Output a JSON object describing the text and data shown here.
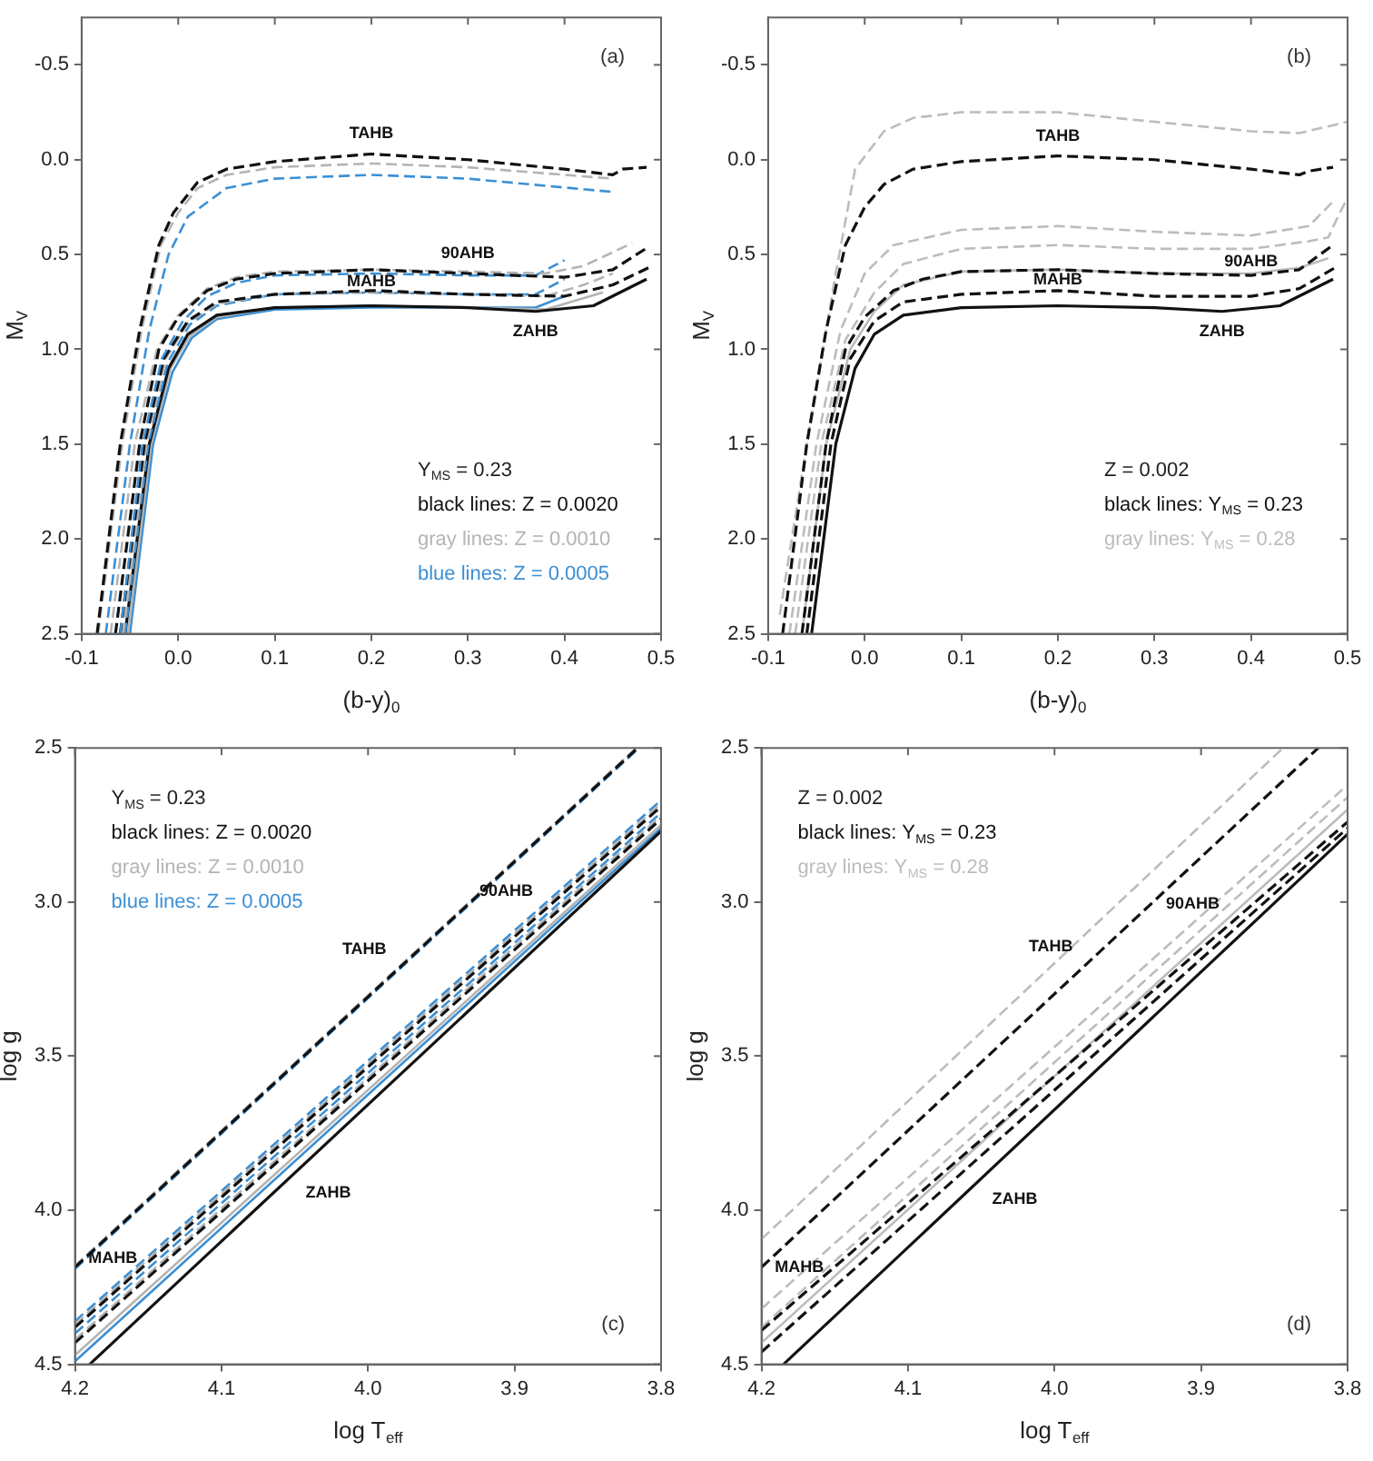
{
  "chart_data": [
    {
      "type": "line",
      "title": "(a)",
      "xlabel": "(b-y)$_{0}$",
      "ylabel": "M$_{V}$",
      "legend": false,
      "grid": false,
      "xlim": [
        -0.1,
        0.5
      ],
      "xticks": [
        {
          "value": -0.1,
          "label": "-0.1"
        },
        {
          "value": 0,
          "label": "0.0"
        },
        {
          "value": 0.1,
          "label": "0.1"
        },
        {
          "value": 0.2,
          "label": "0.2"
        },
        {
          "value": 0.3,
          "label": "0.3"
        },
        {
          "value": 0.4,
          "label": "0.4"
        },
        {
          "value": 0.5,
          "label": "0.5"
        }
      ],
      "ylim": [
        2.5,
        -0.75
      ],
      "yticks": [
        {
          "value": 2.5,
          "label": "2.5"
        },
        {
          "value": 2,
          "label": "2.0"
        },
        {
          "value": 1.5,
          "label": "1.5"
        },
        {
          "value": 1,
          "label": "1.0"
        },
        {
          "value": 0.5,
          "label": "0.5"
        },
        {
          "value": 0,
          "label": "0.0"
        },
        {
          "value": -0.5,
          "label": "-0.5"
        }
      ],
      "annotations": [
        "Y$_{MS}$ = 0.23",
        "black lines: Z = 0.0020",
        "gray lines: Z = 0.0010",
        "blue lines: Z = 0.0005",
        {
          "text": "TAHB",
          "x": 0.2,
          "y": -0.03
        },
        {
          "text": "90AHB",
          "x": 0.3,
          "y": 0.6
        },
        {
          "text": "MAHB",
          "x": 0.2,
          "y": 0.69
        },
        {
          "text": "ZAHB",
          "x": 0.37,
          "y": 0.8
        }
      ],
      "series": [
        {
          "color": "#111111",
          "line_style": "dashed",
          "x": [
            -0.084,
            -0.06,
            -0.04,
            -0.02,
            -0.005,
            0.02,
            0.05,
            0.1,
            0.2,
            0.3,
            0.4,
            0.45,
            0.46,
            0.485
          ],
          "values": [
            2.5,
            1.5,
            0.9,
            0.45,
            0.28,
            0.12,
            0.05,
            0.01,
            -0.03,
            0,
            0.05,
            0.08,
            0.05,
            0.04
          ]
        },
        {
          "color": "#b4b4b4",
          "line_style": "dashed",
          "x": [
            -0.083,
            -0.058,
            -0.038,
            -0.018,
            0,
            0.02,
            0.05,
            0.1,
            0.2,
            0.3,
            0.4,
            0.45
          ],
          "values": [
            2.5,
            1.5,
            0.9,
            0.45,
            0.28,
            0.15,
            0.08,
            0.04,
            0.02,
            0.04,
            0.08,
            0.1
          ]
        },
        {
          "color": "#3b8fd4",
          "line_style": "dashed",
          "x": [
            -0.075,
            -0.05,
            -0.03,
            -0.01,
            0.01,
            0.05,
            0.1,
            0.2,
            0.3,
            0.45
          ],
          "values": [
            2.5,
            1.5,
            0.9,
            0.5,
            0.3,
            0.15,
            0.1,
            0.08,
            0.1,
            0.17
          ]
        },
        {
          "color": "#111111",
          "line_style": "dashed",
          "x": [
            -0.065,
            -0.04,
            -0.02,
            0,
            0.03,
            0.06,
            0.1,
            0.2,
            0.3,
            0.4,
            0.45,
            0.487
          ],
          "values": [
            2.5,
            1.5,
            1,
            0.83,
            0.69,
            0.63,
            0.6,
            0.58,
            0.6,
            0.62,
            0.58,
            0.46
          ]
        },
        {
          "color": "#b4b4b4",
          "line_style": "dashed",
          "x": [
            -0.07,
            -0.045,
            -0.022,
            0,
            0.03,
            0.06,
            0.1,
            0.2,
            0.3,
            0.38,
            0.42,
            0.47
          ],
          "values": [
            2.5,
            1.5,
            1,
            0.82,
            0.68,
            0.62,
            0.59,
            0.58,
            0.59,
            0.6,
            0.56,
            0.44
          ]
        },
        {
          "color": "#3b8fd4",
          "line_style": "dashed",
          "x": [
            -0.06,
            -0.037,
            -0.017,
            0.005,
            0.03,
            0.06,
            0.1,
            0.2,
            0.3,
            0.37,
            0.4
          ],
          "values": [
            2.5,
            1.5,
            1.05,
            0.85,
            0.72,
            0.65,
            0.61,
            0.6,
            0.61,
            0.61,
            0.53
          ]
        },
        {
          "color": "#111111",
          "line_style": "dashed",
          "x": [
            -0.06,
            -0.035,
            -0.015,
            0.01,
            0.04,
            0.1,
            0.2,
            0.3,
            0.4,
            0.45,
            0.487
          ],
          "values": [
            2.5,
            1.5,
            1.05,
            0.85,
            0.75,
            0.71,
            0.69,
            0.71,
            0.72,
            0.66,
            0.57
          ]
        },
        {
          "color": "#b4b4b4",
          "line_style": "dashed",
          "x": [
            -0.057,
            -0.033,
            -0.013,
            0.01,
            0.04,
            0.1,
            0.2,
            0.3,
            0.38,
            0.42,
            0.45
          ],
          "values": [
            2.5,
            1.5,
            1.05,
            0.86,
            0.76,
            0.71,
            0.7,
            0.71,
            0.72,
            0.66,
            0.6
          ]
        },
        {
          "color": "#3b8fd4",
          "line_style": "dashed",
          "x": [
            -0.055,
            -0.031,
            -0.011,
            0.012,
            0.04,
            0.1,
            0.2,
            0.3,
            0.37,
            0.4
          ],
          "values": [
            2.5,
            1.5,
            1.07,
            0.87,
            0.77,
            0.71,
            0.7,
            0.71,
            0.71,
            0.63
          ]
        },
        {
          "color": "#111111",
          "line_style": "solid",
          "x": [
            -0.055,
            -0.03,
            -0.01,
            0.01,
            0.04,
            0.1,
            0.2,
            0.3,
            0.37,
            0.43,
            0.485
          ],
          "values": [
            2.5,
            1.5,
            1.1,
            0.92,
            0.82,
            0.78,
            0.77,
            0.78,
            0.8,
            0.77,
            0.63
          ]
        },
        {
          "color": "#b4b4b4",
          "line_style": "solid",
          "x": [
            -0.052,
            -0.028,
            -0.008,
            0.012,
            0.04,
            0.1,
            0.2,
            0.3,
            0.38,
            0.44
          ],
          "values": [
            2.5,
            1.5,
            1.1,
            0.93,
            0.83,
            0.78,
            0.77,
            0.78,
            0.79,
            0.7
          ]
        },
        {
          "color": "#3b8fd4",
          "line_style": "solid",
          "x": [
            -0.05,
            -0.026,
            -0.006,
            0.014,
            0.04,
            0.1,
            0.2,
            0.3,
            0.37,
            0.4
          ],
          "values": [
            2.5,
            1.5,
            1.12,
            0.94,
            0.84,
            0.79,
            0.78,
            0.78,
            0.78,
            0.72
          ]
        }
      ]
    },
    {
      "type": "line",
      "title": "(b)",
      "xlabel": "(b-y)$_{0}$",
      "ylabel": "M$_{V}$",
      "legend": false,
      "grid": false,
      "xlim": [
        -0.1,
        0.5
      ],
      "xticks": [
        {
          "value": -0.1,
          "label": "-0.1"
        },
        {
          "value": 0,
          "label": "0.0"
        },
        {
          "value": 0.1,
          "label": "0.1"
        },
        {
          "value": 0.2,
          "label": "0.2"
        },
        {
          "value": 0.3,
          "label": "0.3"
        },
        {
          "value": 0.4,
          "label": "0.4"
        },
        {
          "value": 0.5,
          "label": "0.5"
        }
      ],
      "ylim": [
        2.5,
        -0.75
      ],
      "yticks": [
        {
          "value": 2.5,
          "label": "2.5"
        },
        {
          "value": 2,
          "label": "2.0"
        },
        {
          "value": 1.5,
          "label": "1.5"
        },
        {
          "value": 1,
          "label": "1.0"
        },
        {
          "value": 0.5,
          "label": "0.5"
        },
        {
          "value": 0,
          "label": "0.0"
        },
        {
          "value": -0.5,
          "label": "-0.5"
        }
      ],
      "annotations": [
        "Z = 0.002",
        "black lines: Y$_{MS}$ = 0.23",
        "gray lines: Y$_{MS}$ = 0.28",
        {
          "text": "TAHB",
          "x": 0.2,
          "y": -0.02
        },
        {
          "text": "90AHB",
          "x": 0.4,
          "y": 0.61
        },
        {
          "text": "MAHB",
          "x": 0.2,
          "y": 0.69
        },
        {
          "text": "ZAHB",
          "x": 0.37,
          "y": 0.8
        }
      ],
      "series": [
        {
          "color": "#111111",
          "line_style": "dashed",
          "x": [
            -0.085,
            -0.06,
            -0.04,
            -0.02,
            0,
            0.02,
            0.05,
            0.1,
            0.2,
            0.3,
            0.4,
            0.45,
            0.46,
            0.485
          ],
          "values": [
            2.5,
            1.5,
            0.9,
            0.45,
            0.25,
            0.13,
            0.05,
            0.01,
            -0.02,
            0,
            0.05,
            0.08,
            0.06,
            0.04
          ]
        },
        {
          "color": "#bcbcbc",
          "line_style": "dashed",
          "x": [
            -0.088,
            -0.06,
            -0.03,
            -0.01,
            0.02,
            0.05,
            0.1,
            0.2,
            0.3,
            0.4,
            0.45,
            0.5
          ],
          "values": [
            2.4,
            1.5,
            0.6,
            0.05,
            -0.15,
            -0.22,
            -0.25,
            -0.25,
            -0.2,
            -0.15,
            -0.14,
            -0.2
          ]
        },
        {
          "color": "#111111",
          "line_style": "dashed",
          "x": [
            -0.065,
            -0.04,
            -0.02,
            0,
            0.03,
            0.06,
            0.1,
            0.2,
            0.3,
            0.4,
            0.45,
            0.485
          ],
          "values": [
            2.5,
            1.5,
            1,
            0.83,
            0.69,
            0.63,
            0.59,
            0.58,
            0.6,
            0.61,
            0.58,
            0.45
          ]
        },
        {
          "color": "#bcbcbc",
          "line_style": "dashed",
          "x": [
            -0.078,
            -0.05,
            -0.025,
            0,
            0.03,
            0.1,
            0.2,
            0.3,
            0.4,
            0.46,
            0.485
          ],
          "values": [
            2.5,
            1.5,
            0.9,
            0.6,
            0.45,
            0.37,
            0.35,
            0.38,
            0.4,
            0.35,
            0.22
          ]
        },
        {
          "color": "#111111",
          "line_style": "dashed",
          "x": [
            -0.06,
            -0.035,
            -0.015,
            0.01,
            0.04,
            0.1,
            0.2,
            0.3,
            0.4,
            0.45,
            0.487
          ],
          "values": [
            2.5,
            1.5,
            1.05,
            0.85,
            0.75,
            0.71,
            0.69,
            0.72,
            0.72,
            0.68,
            0.57
          ]
        },
        {
          "color": "#bcbcbc",
          "line_style": "dashed",
          "x": [
            -0.072,
            -0.045,
            -0.02,
            0.01,
            0.04,
            0.1,
            0.2,
            0.3,
            0.4,
            0.46,
            0.48,
            0.49,
            0.5
          ],
          "values": [
            2.5,
            1.5,
            0.95,
            0.7,
            0.55,
            0.47,
            0.45,
            0.47,
            0.47,
            0.43,
            0.41,
            0.3,
            0.2
          ]
        },
        {
          "color": "#111111",
          "line_style": "solid",
          "x": [
            -0.055,
            -0.03,
            -0.01,
            0.01,
            0.04,
            0.1,
            0.2,
            0.3,
            0.37,
            0.43,
            0.485
          ],
          "values": [
            2.5,
            1.5,
            1.1,
            0.92,
            0.82,
            0.78,
            0.77,
            0.78,
            0.8,
            0.77,
            0.63
          ]
        },
        {
          "color": "#bcbcbc",
          "line_style": "solid",
          "x": [
            -0.065,
            -0.04,
            -0.015,
            0.01,
            0.04,
            0.1,
            0.2,
            0.3,
            0.4,
            0.45,
            0.48
          ],
          "values": [
            2.5,
            1.5,
            1,
            0.8,
            0.66,
            0.59,
            0.58,
            0.6,
            0.6,
            0.57,
            0.52
          ]
        }
      ]
    },
    {
      "type": "line",
      "title": "(c)",
      "xlabel": "log T$_{eff}$",
      "ylabel": "log g",
      "legend": false,
      "grid": false,
      "xlim": [
        4.2,
        3.8
      ],
      "xticks": [
        {
          "value": 4.2,
          "label": "4.2"
        },
        {
          "value": 4.1,
          "label": "4.1"
        },
        {
          "value": 4,
          "label": "4.0"
        },
        {
          "value": 3.9,
          "label": "3.9"
        },
        {
          "value": 3.8,
          "label": "3.8"
        }
      ],
      "ylim": [
        4.5,
        2.5
      ],
      "yticks": [
        {
          "value": 4.5,
          "label": "4.5"
        },
        {
          "value": 4,
          "label": "4.0"
        },
        {
          "value": 3.5,
          "label": "3.5"
        },
        {
          "value": 3,
          "label": "3.0"
        },
        {
          "value": 2.5,
          "label": "2.5"
        }
      ],
      "annotations": [
        "Y$_{MS}$ = 0.23",
        "black lines: Z = 0.0020",
        "gray lines: Z = 0.0010",
        "blue lines: Z = 0.0005",
        {
          "text": "TAHB",
          "x": 3.98,
          "y": 3.22
        },
        {
          "text": "90AHB",
          "x": 3.88,
          "y": 3.03
        },
        {
          "text": "MAHB",
          "x": 4.15,
          "y": 4.22
        },
        {
          "text": "ZAHB",
          "x": 4.05,
          "y": 3.88
        }
      ],
      "series": [
        {
          "color": "#111111",
          "line_style": "dashed",
          "x": [
            4.2,
            3.816
          ],
          "values": [
            4.185,
            2.5
          ]
        },
        {
          "color": "#b4b4b4",
          "line_style": "dashed",
          "x": [
            4.2,
            3.817
          ],
          "values": [
            4.18,
            2.5
          ]
        },
        {
          "color": "#3b8fd4",
          "line_style": "dashed",
          "x": [
            4.2,
            3.815
          ],
          "values": [
            4.19,
            2.5
          ]
        },
        {
          "color": "#111111",
          "line_style": "dashed",
          "x": [
            4.2,
            3.8
          ],
          "values": [
            4.38,
            2.69
          ]
        },
        {
          "color": "#b4b4b4",
          "line_style": "dashed",
          "x": [
            4.2,
            3.8
          ],
          "values": [
            4.37,
            2.68
          ]
        },
        {
          "color": "#3b8fd4",
          "line_style": "dashed",
          "x": [
            4.2,
            3.8
          ],
          "values": [
            4.36,
            2.67
          ]
        },
        {
          "color": "#111111",
          "line_style": "dashed",
          "x": [
            4.2,
            3.8
          ],
          "values": [
            4.43,
            2.73
          ]
        },
        {
          "color": "#b4b4b4",
          "line_style": "dashed",
          "x": [
            4.2,
            3.8
          ],
          "values": [
            4.42,
            2.72
          ]
        },
        {
          "color": "#3b8fd4",
          "line_style": "dashed",
          "x": [
            4.2,
            3.8
          ],
          "values": [
            4.4,
            2.71
          ]
        },
        {
          "color": "#111111",
          "line_style": "solid",
          "x": [
            4.19,
            3.8
          ],
          "values": [
            4.5,
            2.77
          ]
        },
        {
          "color": "#b4b4b4",
          "line_style": "solid",
          "x": [
            4.2,
            3.8
          ],
          "values": [
            4.47,
            2.75
          ]
        },
        {
          "color": "#3b8fd4",
          "line_style": "solid",
          "x": [
            4.2,
            3.8
          ],
          "values": [
            4.49,
            2.76
          ]
        }
      ]
    },
    {
      "type": "line",
      "title": "(d)",
      "xlabel": "log T$_{eff}$",
      "ylabel": "log g",
      "legend": false,
      "grid": false,
      "xlim": [
        4.2,
        3.8
      ],
      "xticks": [
        {
          "value": 4.2,
          "label": "4.2"
        },
        {
          "value": 4.1,
          "label": "4.1"
        },
        {
          "value": 4,
          "label": "4.0"
        },
        {
          "value": 3.9,
          "label": "3.9"
        },
        {
          "value": 3.8,
          "label": "3.8"
        }
      ],
      "ylim": [
        4.5,
        2.5
      ],
      "yticks": [
        {
          "value": 4.5,
          "label": "4.5"
        },
        {
          "value": 4,
          "label": "4.0"
        },
        {
          "value": 3.5,
          "label": "3.5"
        },
        {
          "value": 3,
          "label": "3.0"
        },
        {
          "value": 2.5,
          "label": "2.5"
        }
      ],
      "annotations": [
        "Z = 0.002",
        "black lines: Y$_{MS}$ = 0.23",
        "gray lines: Y$_{MS}$ = 0.28",
        {
          "text": "TAHB",
          "x": 3.98,
          "y": 3.21
        },
        {
          "text": "90AHB",
          "x": 3.88,
          "y": 3.07
        },
        {
          "text": "MAHB",
          "x": 4.15,
          "y": 4.25
        },
        {
          "text": "ZAHB",
          "x": 4.05,
          "y": 3.9
        }
      ],
      "series": [
        {
          "color": "#111111",
          "line_style": "dashed",
          "x": [
            4.2,
            3.82
          ],
          "values": [
            4.185,
            2.5
          ]
        },
        {
          "color": "#bcbcbc",
          "line_style": "dashed",
          "x": [
            4.2,
            3.844
          ],
          "values": [
            4.094,
            2.5
          ]
        },
        {
          "color": "#111111",
          "line_style": "dashed",
          "x": [
            4.2,
            3.8
          ],
          "values": [
            4.39,
            2.74
          ]
        },
        {
          "color": "#bcbcbc",
          "line_style": "dashed",
          "x": [
            4.2,
            3.8
          ],
          "values": [
            4.32,
            2.62
          ]
        },
        {
          "color": "#111111",
          "line_style": "dashed",
          "x": [
            4.2,
            3.8
          ],
          "values": [
            4.46,
            2.76
          ]
        },
        {
          "color": "#bcbcbc",
          "line_style": "dashed",
          "x": [
            4.2,
            3.8
          ],
          "values": [
            4.38,
            2.66
          ]
        },
        {
          "color": "#111111",
          "line_style": "solid",
          "x": [
            4.185,
            3.8
          ],
          "values": [
            4.5,
            2.78
          ]
        },
        {
          "color": "#bcbcbc",
          "line_style": "solid",
          "x": [
            4.2,
            3.8
          ],
          "values": [
            4.43,
            2.7
          ]
        }
      ]
    }
  ]
}
